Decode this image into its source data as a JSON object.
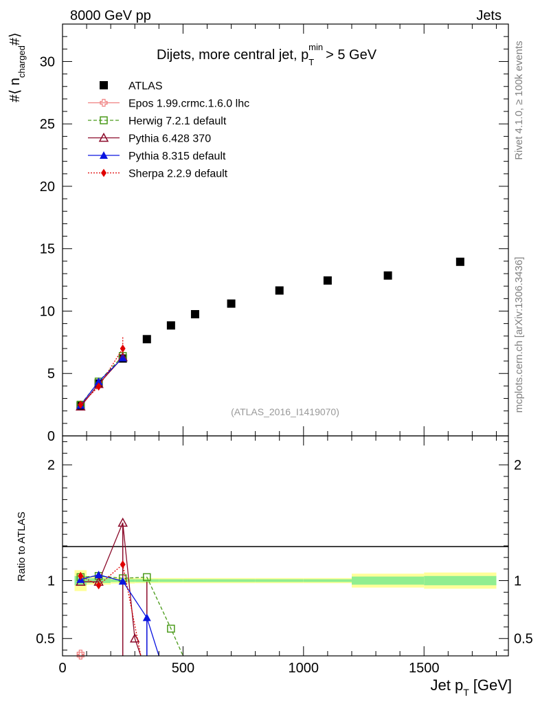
{
  "header": {
    "top_left": "8000 GeV pp",
    "top_right": "Jets"
  },
  "side_labels": {
    "rivet": "Rivet 4.1.0, ≥ 100k events",
    "mcplots": "mcplots.cern.ch [arXiv:1306.3436]"
  },
  "chart_data": [
    {
      "type": "scatter",
      "title": "Dijets, more central jet, p_T^min > 5 GeV",
      "title_parts": {
        "prefix": "Dijets, more central jet, p",
        "sub": "T",
        "sup": "min",
        "suffix": "> 5 GeV"
      },
      "ylabel_parts": {
        "prefix": "#⟨ n",
        "sub": "charged",
        "suffix": "#⟩"
      },
      "watermark": "(ATLAS_2016_I1419070)",
      "xlim": [
        0,
        1850
      ],
      "ylim": [
        0,
        33
      ],
      "xticks": [
        0,
        500,
        1000,
        1500
      ],
      "yticks": [
        0,
        5,
        10,
        15,
        20,
        25,
        30
      ],
      "ytick_labels": [
        "0",
        "5",
        "10",
        "15",
        "20",
        "25",
        "30"
      ],
      "legend_position": "top-left",
      "series": [
        {
          "name": "ATLAS",
          "color": "#000000",
          "marker": "square-filled",
          "line": "none",
          "x": [
            75,
            150,
            250,
            350,
            450,
            550,
            700,
            900,
            1100,
            1350,
            1650
          ],
          "y": [
            2.4,
            4.2,
            6.2,
            7.75,
            8.85,
            9.75,
            10.6,
            11.65,
            12.45,
            12.85,
            13.95
          ]
        },
        {
          "name": "Epos 1.99.crmc.1.6.0 lhc",
          "color": "#f08080",
          "marker": "cross-open",
          "line": "solid",
          "x": [],
          "y": []
        },
        {
          "name": "Herwig 7.2.1 default",
          "color": "#4a9a1a",
          "marker": "square-open",
          "line": "dashed",
          "x": [
            75,
            150,
            250
          ],
          "y": [
            2.5,
            4.35,
            6.4
          ]
        },
        {
          "name": "Pythia 6.428 370",
          "color": "#8b0a2a",
          "marker": "triangle-open",
          "line": "solid",
          "x": [
            75,
            150,
            250
          ],
          "y": [
            2.35,
            4.15,
            6.3
          ]
        },
        {
          "name": "Pythia 8.315 default",
          "color": "#0a14e0",
          "marker": "triangle-filled",
          "line": "solid",
          "x": [
            75,
            150,
            250
          ],
          "y": [
            2.45,
            4.35,
            6.25
          ]
        },
        {
          "name": "Sherpa 2.2.9 default",
          "color": "#e00000",
          "marker": "diamond-filled",
          "line": "dotted",
          "x": [
            75,
            150,
            250
          ],
          "y": [
            2.5,
            3.95,
            7.0
          ]
        }
      ]
    },
    {
      "type": "line",
      "title": "Ratio to ATLAS",
      "xlabel": "Jet p_T [GeV]",
      "xlabel_parts": {
        "prefix": "Jet p",
        "sub": "T",
        "suffix": "[GeV]"
      },
      "ylabel": "Ratio to ATLAS",
      "xlim": [
        0,
        1850
      ],
      "ylim": [
        0.35,
        2.25
      ],
      "xticks": [
        0,
        500,
        1000,
        1500
      ],
      "xtick_labels": [
        "0",
        "500",
        "1000",
        "1500"
      ],
      "yticks": [
        0.5,
        1,
        2
      ],
      "ytick_labels": [
        "0.5",
        "1",
        "2"
      ],
      "uncertainty_bands": {
        "edges": [
          50,
          100,
          200,
          300,
          400,
          500,
          600,
          800,
          1000,
          1200,
          1500,
          1800
        ],
        "stat_syst": [
          0.09,
          0.035,
          0.025,
          0.022,
          0.022,
          0.022,
          0.022,
          0.022,
          0.022,
          0.06,
          0.07
        ],
        "stat": [
          0.04,
          0.02,
          0.012,
          0.012,
          0.012,
          0.012,
          0.012,
          0.012,
          0.012,
          0.035,
          0.04
        ],
        "inner_color": "#90ee90",
        "outer_color": "#ffff99"
      },
      "series": [
        {
          "name": "Epos 1.99.crmc.1.6.0 lhc",
          "color": "#f08080",
          "marker": "cross-open",
          "line": "solid",
          "x": [
            75
          ],
          "y": [
            0.37
          ],
          "drop_to": []
        },
        {
          "name": "Herwig 7.2.1 default",
          "color": "#4a9a1a",
          "marker": "square-open",
          "line": "dashed",
          "x": [
            75,
            150,
            250,
            350,
            450,
            500
          ],
          "y": [
            1.03,
            1.04,
            1.02,
            1.03,
            0.585,
            0.35
          ]
        },
        {
          "name": "Pythia 6.428 370",
          "color": "#8b0a2a",
          "marker": "triangle-open",
          "line": "solid",
          "x": [
            75,
            150,
            250,
            300,
            325
          ],
          "y": [
            0.99,
            0.99,
            1.5,
            0.5,
            0.35
          ],
          "drop_to": [
            250,
            350
          ]
        },
        {
          "name": "Pythia 8.315 default",
          "color": "#0a14e0",
          "marker": "triangle-filled",
          "line": "solid",
          "x": [
            75,
            150,
            250,
            350,
            400
          ],
          "y": [
            1.01,
            1.05,
            0.995,
            0.68,
            0.35
          ],
          "drop_to": [
            350
          ]
        },
        {
          "name": "Sherpa 2.2.9 default",
          "color": "#e00000",
          "marker": "diamond-filled",
          "line": "dotted",
          "x": [
            75,
            150,
            250,
            325
          ],
          "y": [
            1.04,
            0.96,
            1.14,
            0.35
          ]
        }
      ]
    }
  ]
}
